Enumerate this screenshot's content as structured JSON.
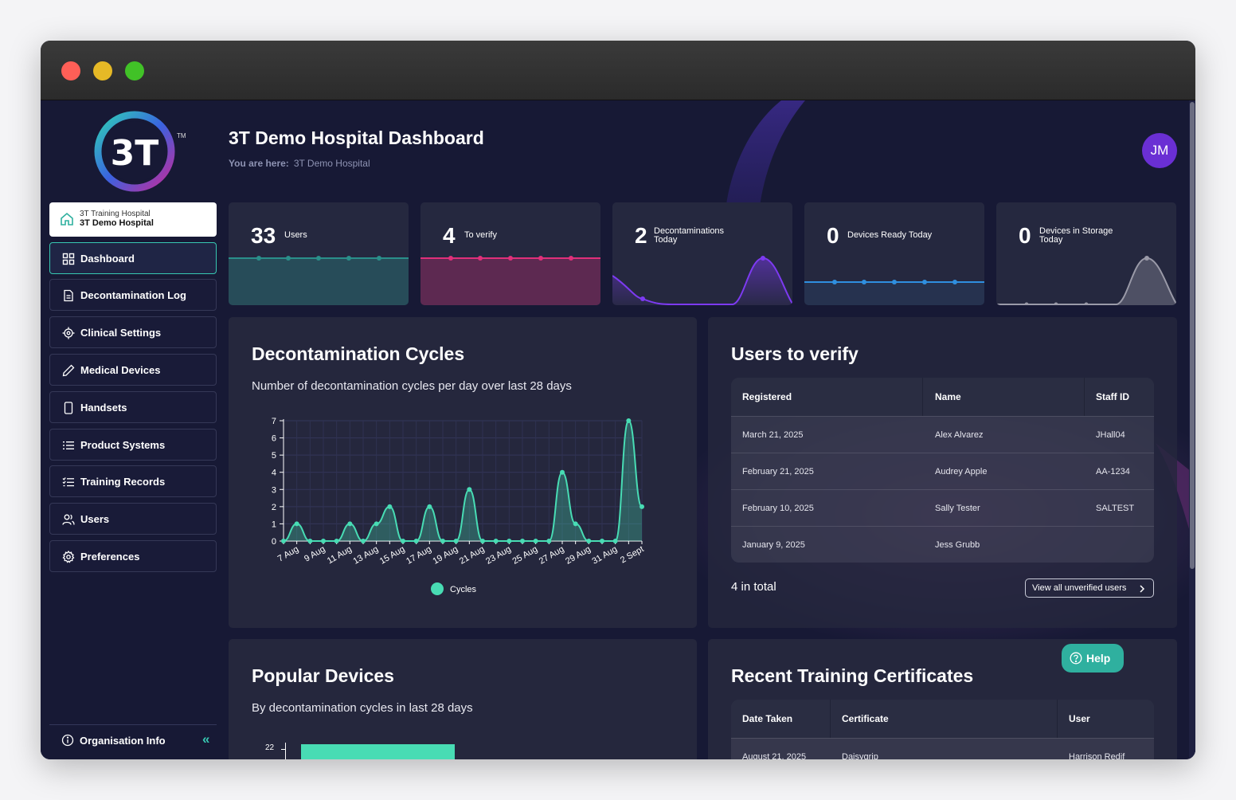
{
  "window": {
    "traffic_lights": [
      "#ff5f57",
      "#e6b926",
      "#41c227"
    ]
  },
  "brand": {
    "logo_text": "3T",
    "trademark": "TM"
  },
  "sidebar": {
    "organisation": {
      "parent": "3T Training Hospital",
      "name": "3T Demo Hospital",
      "icon": "home-icon"
    },
    "items": [
      {
        "label": "Dashboard",
        "icon": "grid-icon",
        "active": true
      },
      {
        "label": "Decontamination Log",
        "icon": "document-icon"
      },
      {
        "label": "Clinical Settings",
        "icon": "target-icon"
      },
      {
        "label": "Medical Devices",
        "icon": "pen-icon"
      },
      {
        "label": "Handsets",
        "icon": "phone-icon"
      },
      {
        "label": "Product Systems",
        "icon": "list-icon"
      },
      {
        "label": "Training Records",
        "icon": "checklist-icon"
      },
      {
        "label": "Users",
        "icon": "users-icon"
      },
      {
        "label": "Preferences",
        "icon": "gear-icon"
      }
    ],
    "footer": {
      "label": "Organisation Info",
      "icon": "info-icon",
      "collapse": "«"
    }
  },
  "header": {
    "title": "3T Demo Hospital Dashboard",
    "breadcrumb_label": "You are here:",
    "breadcrumb_value": "3T Demo Hospital",
    "avatar_initials": "JM"
  },
  "stats": [
    {
      "value": "33",
      "label": "Users",
      "color": "#2a8f8a"
    },
    {
      "value": "4",
      "label": "To verify",
      "color": "#e0307a"
    },
    {
      "value": "2",
      "label": "Decontaminations Today",
      "color": "#7d3af2"
    },
    {
      "value": "0",
      "label": "Devices Ready Today",
      "color": "#2f8fe0"
    },
    {
      "value": "0",
      "label": "Devices in Storage Today",
      "color": "#9a9aa8"
    }
  ],
  "decon_panel": {
    "title": "Decontamination Cycles",
    "subtitle": "Number of decontamination cycles per day over last 28 days"
  },
  "chart_data": {
    "type": "area",
    "title": "",
    "xlabel": "",
    "ylabel": "",
    "ylim": [
      0,
      7
    ],
    "yticks": [
      0,
      1,
      2,
      3,
      4,
      5,
      6,
      7
    ],
    "x": [
      "6 Aug",
      "7 Aug",
      "8 Aug",
      "9 Aug",
      "10 Aug",
      "11 Aug",
      "12 Aug",
      "13 Aug",
      "14 Aug",
      "15 Aug",
      "16 Aug",
      "17 Aug",
      "18 Aug",
      "19 Aug",
      "20 Aug",
      "21 Aug",
      "22 Aug",
      "23 Aug",
      "24 Aug",
      "25 Aug",
      "26 Aug",
      "27 Aug",
      "28 Aug",
      "29 Aug",
      "30 Aug",
      "31 Aug",
      "1 Sept",
      "2 Sept"
    ],
    "xtick_labels": [
      "7 Aug",
      "9 Aug",
      "11 Aug",
      "13 Aug",
      "15 Aug",
      "17 Aug",
      "19 Aug",
      "21 Aug",
      "23 Aug",
      "25 Aug",
      "27 Aug",
      "29 Aug",
      "31 Aug",
      "2 Sept"
    ],
    "series": [
      {
        "name": "Cycles",
        "values": [
          0,
          1,
          0,
          0,
          0,
          1,
          0,
          1,
          2,
          0,
          0,
          2,
          0,
          0,
          3,
          0,
          0,
          0,
          0,
          0,
          0,
          4,
          1,
          0,
          0,
          0,
          7,
          2
        ]
      }
    ],
    "legend": "bottom",
    "grid": true,
    "color": "#48dcb4"
  },
  "verify_panel": {
    "title": "Users to verify",
    "columns": [
      "Registered",
      "Name",
      "Staff ID"
    ],
    "rows": [
      [
        "March 21, 2025",
        "Alex Alvarez",
        "JHall04"
      ],
      [
        "February 21, 2025",
        "Audrey Apple",
        "AA-1234"
      ],
      [
        "February 10, 2025",
        "Sally Tester",
        "SALTEST"
      ],
      [
        "January 9, 2025",
        "Jess Grubb",
        ""
      ]
    ],
    "total": "4 in total",
    "view_all": "View all unverified users"
  },
  "devices_panel": {
    "title": "Popular Devices",
    "subtitle": "By decontamination cycles in last 28 days",
    "visible_tick": "22"
  },
  "certs_panel": {
    "title": "Recent Training Certificates",
    "columns": [
      "Date Taken",
      "Certificate",
      "User"
    ],
    "rows": [
      [
        "August 21, 2025",
        "Daisygrip",
        "Harrison Redif"
      ]
    ]
  },
  "help": {
    "label": "Help",
    "icon": "question-icon"
  }
}
